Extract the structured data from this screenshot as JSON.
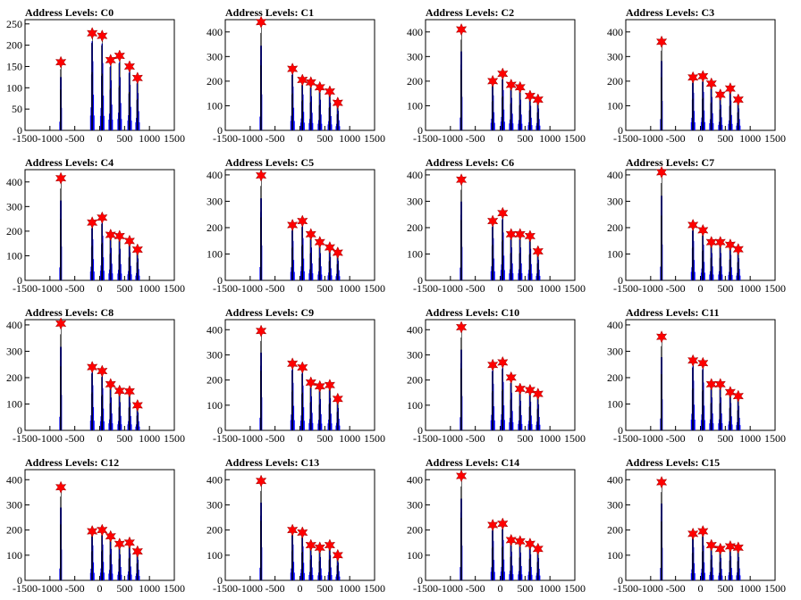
{
  "chart_data": [
    {
      "type": "bar",
      "title": "Address Levels: C0",
      "xlim": [
        -1500,
        1500
      ],
      "ylim": [
        0,
        260
      ],
      "yticks": [
        0,
        50,
        100,
        150,
        200,
        250
      ],
      "xticks": [
        -1500,
        -1000,
        -500,
        0,
        500,
        1000,
        1500
      ],
      "peaks_x": [
        -780,
        -150,
        50,
        220,
        400,
        600,
        760
      ],
      "peaks_y": [
        160,
        228,
        222,
        165,
        175,
        150,
        123
      ],
      "marker_color": "#ff0000",
      "bar_color": "#0000ff"
    },
    {
      "type": "bar",
      "title": "Address Levels: C1",
      "xlim": [
        -1500,
        1500
      ],
      "ylim": [
        0,
        450
      ],
      "yticks": [
        0,
        100,
        200,
        300,
        400
      ],
      "xticks": [
        -1500,
        -1000,
        -500,
        0,
        500,
        1000,
        1500
      ],
      "peaks_x": [
        -780,
        -150,
        50,
        220,
        400,
        600,
        760
      ],
      "peaks_y": [
        440,
        250,
        205,
        195,
        175,
        158,
        112
      ],
      "marker_color": "#ff0000",
      "bar_color": "#0000ff"
    },
    {
      "type": "bar",
      "title": "Address Levels: C2",
      "xlim": [
        -1500,
        1500
      ],
      "ylim": [
        0,
        450
      ],
      "yticks": [
        0,
        100,
        200,
        300,
        400
      ],
      "xticks": [
        -1500,
        -1000,
        -500,
        0,
        500,
        1000,
        1500
      ],
      "peaks_x": [
        -780,
        -150,
        50,
        220,
        400,
        600,
        760
      ],
      "peaks_y": [
        410,
        200,
        230,
        185,
        175,
        140,
        125
      ],
      "marker_color": "#ff0000",
      "bar_color": "#0000ff"
    },
    {
      "type": "bar",
      "title": "Address Levels: C3",
      "xlim": [
        -1500,
        1500
      ],
      "ylim": [
        0,
        450
      ],
      "yticks": [
        0,
        100,
        200,
        300,
        400
      ],
      "xticks": [
        -1500,
        -1000,
        -500,
        0,
        500,
        1000,
        1500
      ],
      "peaks_x": [
        -780,
        -150,
        50,
        220,
        400,
        600,
        760
      ],
      "peaks_y": [
        360,
        215,
        220,
        190,
        145,
        170,
        125
      ],
      "marker_color": "#ff0000",
      "bar_color": "#0000ff"
    },
    {
      "type": "bar",
      "title": "Address Levels: C4",
      "xlim": [
        -1500,
        1500
      ],
      "ylim": [
        0,
        450
      ],
      "yticks": [
        0,
        100,
        200,
        300,
        400
      ],
      "xticks": [
        -1500,
        -1000,
        -500,
        0,
        500,
        1000,
        1500
      ],
      "peaks_x": [
        -780,
        -150,
        50,
        220,
        400,
        600,
        760
      ],
      "peaks_y": [
        415,
        235,
        255,
        185,
        180,
        160,
        125
      ],
      "marker_color": "#ff0000",
      "bar_color": "#0000ff"
    },
    {
      "type": "bar",
      "title": "Address Levels: C5",
      "xlim": [
        -1500,
        1500
      ],
      "ylim": [
        0,
        420
      ],
      "yticks": [
        0,
        100,
        200,
        300,
        400
      ],
      "xticks": [
        -1500,
        -1000,
        -500,
        0,
        500,
        1000,
        1500
      ],
      "peaks_x": [
        -780,
        -150,
        50,
        220,
        400,
        600,
        760
      ],
      "peaks_y": [
        398,
        210,
        225,
        175,
        145,
        125,
        105
      ],
      "marker_color": "#ff0000",
      "bar_color": "#0000ff"
    },
    {
      "type": "bar",
      "title": "Address Levels: C6",
      "xlim": [
        -1500,
        1500
      ],
      "ylim": [
        0,
        420
      ],
      "yticks": [
        0,
        100,
        200,
        300,
        400
      ],
      "xticks": [
        -1500,
        -1000,
        -500,
        0,
        500,
        1000,
        1500
      ],
      "peaks_x": [
        -780,
        -150,
        50,
        220,
        400,
        600,
        760
      ],
      "peaks_y": [
        382,
        225,
        255,
        175,
        175,
        168,
        110
      ],
      "marker_color": "#ff0000",
      "bar_color": "#0000ff"
    },
    {
      "type": "bar",
      "title": "Address Levels: C7",
      "xlim": [
        -1500,
        1500
      ],
      "ylim": [
        0,
        420
      ],
      "yticks": [
        0,
        100,
        200,
        300,
        400
      ],
      "xticks": [
        -1500,
        -1000,
        -500,
        0,
        500,
        1000,
        1500
      ],
      "peaks_x": [
        -780,
        -150,
        50,
        220,
        400,
        600,
        760
      ],
      "peaks_y": [
        410,
        210,
        190,
        145,
        145,
        135,
        118
      ],
      "marker_color": "#ff0000",
      "bar_color": "#0000ff"
    },
    {
      "type": "bar",
      "title": "Address Levels: C8",
      "xlim": [
        -1500,
        1500
      ],
      "ylim": [
        0,
        420
      ],
      "yticks": [
        0,
        100,
        200,
        300,
        400
      ],
      "xticks": [
        -1500,
        -1000,
        -500,
        0,
        500,
        1000,
        1500
      ],
      "peaks_x": [
        -780,
        -150,
        50,
        220,
        400,
        600,
        760
      ],
      "peaks_y": [
        405,
        240,
        225,
        175,
        150,
        148,
        95
      ],
      "marker_color": "#ff0000",
      "bar_color": "#0000ff"
    },
    {
      "type": "bar",
      "title": "Address Levels: C9",
      "xlim": [
        -1500,
        1500
      ],
      "ylim": [
        0,
        440
      ],
      "yticks": [
        0,
        100,
        200,
        300,
        400
      ],
      "xticks": [
        -1500,
        -1000,
        -500,
        0,
        500,
        1000,
        1500
      ],
      "peaks_x": [
        -780,
        -150,
        50,
        220,
        400,
        600,
        760
      ],
      "peaks_y": [
        395,
        265,
        250,
        190,
        175,
        180,
        125
      ],
      "marker_color": "#ff0000",
      "bar_color": "#0000ff"
    },
    {
      "type": "bar",
      "title": "Address Levels: C10",
      "xlim": [
        -1500,
        1500
      ],
      "ylim": [
        0,
        440
      ],
      "yticks": [
        0,
        100,
        200,
        300,
        400
      ],
      "xticks": [
        -1500,
        -1000,
        -500,
        0,
        500,
        1000,
        1500
      ],
      "peaks_x": [
        -780,
        -150,
        50,
        220,
        400,
        600,
        760
      ],
      "peaks_y": [
        410,
        260,
        270,
        210,
        165,
        160,
        145
      ],
      "marker_color": "#ff0000",
      "bar_color": "#0000ff"
    },
    {
      "type": "bar",
      "title": "Address Levels: C11",
      "xlim": [
        -1500,
        1500
      ],
      "ylim": [
        0,
        420
      ],
      "yticks": [
        0,
        100,
        200,
        300,
        400
      ],
      "xticks": [
        -1500,
        -1000,
        -500,
        0,
        500,
        1000,
        1500
      ],
      "peaks_x": [
        -780,
        -150,
        50,
        220,
        400,
        600,
        760
      ],
      "peaks_y": [
        355,
        265,
        255,
        175,
        175,
        145,
        130
      ],
      "marker_color": "#ff0000",
      "bar_color": "#0000ff"
    },
    {
      "type": "bar",
      "title": "Address Levels: C12",
      "xlim": [
        -1500,
        1500
      ],
      "ylim": [
        0,
        440
      ],
      "yticks": [
        0,
        100,
        200,
        300,
        400
      ],
      "xticks": [
        -1500,
        -1000,
        -500,
        0,
        500,
        1000,
        1500
      ],
      "peaks_x": [
        -780,
        -150,
        50,
        220,
        400,
        600,
        760
      ],
      "peaks_y": [
        370,
        195,
        200,
        175,
        145,
        150,
        115
      ],
      "marker_color": "#ff0000",
      "bar_color": "#0000ff"
    },
    {
      "type": "bar",
      "title": "Address Levels: C13",
      "xlim": [
        -1500,
        1500
      ],
      "ylim": [
        0,
        440
      ],
      "yticks": [
        0,
        100,
        200,
        300,
        400
      ],
      "xticks": [
        -1500,
        -1000,
        -500,
        0,
        500,
        1000,
        1500
      ],
      "peaks_x": [
        -780,
        -150,
        50,
        220,
        400,
        600,
        760
      ],
      "peaks_y": [
        395,
        200,
        190,
        140,
        130,
        140,
        100
      ],
      "marker_color": "#ff0000",
      "bar_color": "#0000ff"
    },
    {
      "type": "bar",
      "title": "Address Levels: C14",
      "xlim": [
        -1500,
        1500
      ],
      "ylim": [
        0,
        440
      ],
      "yticks": [
        0,
        100,
        200,
        300,
        400
      ],
      "xticks": [
        -1500,
        -1000,
        -500,
        0,
        500,
        1000,
        1500
      ],
      "peaks_x": [
        -780,
        -150,
        50,
        220,
        400,
        600,
        760
      ],
      "peaks_y": [
        415,
        220,
        225,
        160,
        155,
        145,
        125
      ],
      "marker_color": "#ff0000",
      "bar_color": "#0000ff"
    },
    {
      "type": "bar",
      "title": "Address Levels: C15",
      "xlim": [
        -1500,
        1500
      ],
      "ylim": [
        0,
        440
      ],
      "yticks": [
        0,
        100,
        200,
        300,
        400
      ],
      "xticks": [
        -1500,
        -1000,
        -500,
        0,
        500,
        1000,
        1500
      ],
      "peaks_x": [
        -780,
        -150,
        50,
        220,
        400,
        600,
        760
      ],
      "peaks_y": [
        390,
        185,
        195,
        140,
        125,
        135,
        130
      ],
      "marker_color": "#ff0000",
      "bar_color": "#0000ff"
    }
  ]
}
